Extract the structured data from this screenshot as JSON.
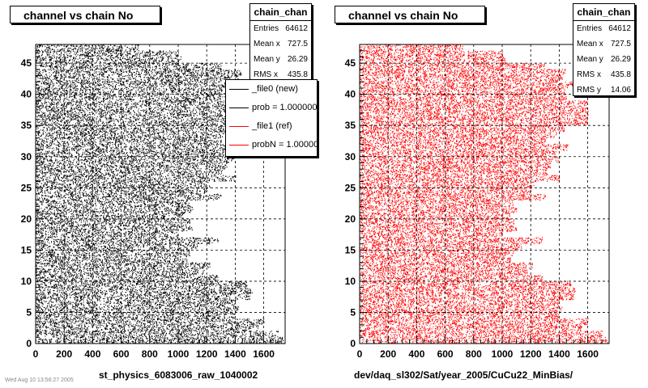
{
  "footer_text": "Wed Aug 10 13:56:27 2005",
  "panels": [
    {
      "title": "channel vs chain No",
      "stats": {
        "name": "chain_chan",
        "rows": [
          {
            "label": "Entries",
            "value": "64612"
          },
          {
            "label": "Mean x",
            "value": "727.5"
          },
          {
            "label": "Mean y",
            "value": "26.29"
          },
          {
            "label": "RMS x",
            "value": "435.8"
          }
        ]
      },
      "legend": [
        {
          "text": "_file0 (new)",
          "color": "#000000"
        },
        {
          "text": "prob = 1.000000",
          "color": "#000000"
        },
        {
          "text": "_file1 (ref)",
          "color": "#ff0000"
        },
        {
          "text": "probN = 1.000000",
          "color": "#ff0000"
        }
      ],
      "xlabel": "st_physics_6083006_raw_1040002"
    },
    {
      "title": "channel vs chain No",
      "stats": {
        "name": "chain_chan",
        "rows": [
          {
            "label": "Entries",
            "value": "64612"
          },
          {
            "label": "Mean x",
            "value": "727.5"
          },
          {
            "label": "Mean y",
            "value": "26.29"
          },
          {
            "label": "RMS x",
            "value": "435.8"
          },
          {
            "label": "RMS y",
            "value": "14.06"
          }
        ]
      },
      "xlabel": "dev/daq_sl302/Sat/year_2005/CuCu22_MinBias/"
    }
  ],
  "chart_data": [
    {
      "type": "scatter",
      "title": "channel vs chain No",
      "xlabel": "st_physics_6083006_raw_1040002",
      "ylabel": "",
      "xlim": [
        0,
        1750
      ],
      "ylim": [
        0,
        48
      ],
      "xticks": [
        0,
        200,
        400,
        600,
        800,
        1000,
        1200,
        1400,
        1600
      ],
      "yticks": [
        0,
        5,
        10,
        15,
        20,
        25,
        30,
        35,
        40,
        45
      ],
      "grid": true,
      "marker_color": "#000000",
      "row_extents": [
        1740,
        1700,
        1560,
        1600,
        1400,
        1420,
        1400,
        1500,
        1520,
        1480,
        1280,
        1180,
        1220,
        1060,
        1080,
        1140,
        1280,
        1000,
        1100,
        1080,
        1050,
        1100,
        1080,
        1300,
        1200,
        1220,
        1400,
        1320,
        1340,
        1400,
        1380,
        1460,
        1300,
        1380,
        1440,
        1600,
        1600,
        1600,
        1600,
        1450,
        1440,
        1520,
        1420,
        1440,
        1300,
        1020,
        1000,
        720
      ]
    },
    {
      "type": "scatter",
      "title": "channel vs chain No",
      "xlabel": "dev/daq_sl302/Sat/year_2005/CuCu22_MinBias/",
      "ylabel": "",
      "xlim": [
        0,
        1750
      ],
      "ylim": [
        0,
        48
      ],
      "xticks": [
        0,
        200,
        400,
        600,
        800,
        1000,
        1200,
        1400,
        1600
      ],
      "yticks": [
        0,
        5,
        10,
        15,
        20,
        25,
        30,
        35,
        40,
        45
      ],
      "grid": true,
      "marker_color": "#ff0000",
      "row_extents": [
        1740,
        1700,
        1560,
        1600,
        1400,
        1420,
        1400,
        1500,
        1520,
        1480,
        1280,
        1180,
        1220,
        1060,
        1080,
        1140,
        1280,
        1000,
        1100,
        1080,
        1050,
        1100,
        1080,
        1300,
        1200,
        1220,
        1400,
        1320,
        1340,
        1400,
        1380,
        1460,
        1300,
        1380,
        1440,
        1600,
        1600,
        1600,
        1600,
        1450,
        1440,
        1520,
        1420,
        1440,
        1300,
        1020,
        1000,
        720
      ]
    }
  ]
}
